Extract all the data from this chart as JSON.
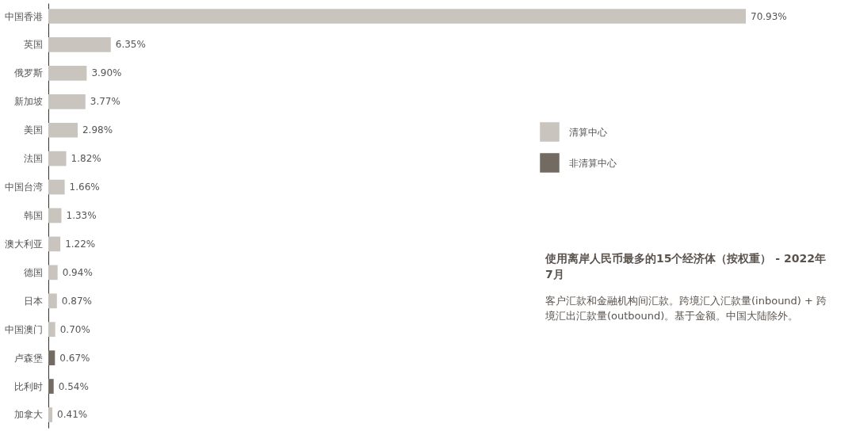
{
  "chart_data": {
    "type": "bar",
    "orientation": "horizontal",
    "title": "使用离岸人民币最多的15个经济体（按权重） - 2022年7月",
    "subtitle": "客户汇款和金融机构间汇款。跨境汇入汇款量(inbound) + 跨境汇出汇款量(outbound)。基于金额。中国大陆除外。",
    "categories": [
      "中国香港",
      "英国",
      "俄罗斯",
      "新加坡",
      "美国",
      "法国",
      "中国台湾",
      "韩国",
      "澳大利亚",
      "德国",
      "日本",
      "中国澳门",
      "卢森堡",
      "比利时",
      "加拿大"
    ],
    "series": [
      {
        "name": "清算中心",
        "color": "#c9c4bd",
        "values": [
          70.93,
          6.35,
          3.9,
          3.77,
          2.98,
          1.82,
          1.66,
          1.33,
          1.22,
          0.94,
          0.87,
          0.7,
          null,
          null,
          0.41
        ],
        "value_labels": [
          "70.93%",
          "6.35%",
          "3.90%",
          "3.77%",
          "2.98%",
          "1.82%",
          "1.66%",
          "1.33%",
          "1.22%",
          "0.94%",
          "0.87%",
          "0.70%",
          null,
          null,
          "0.41%"
        ]
      },
      {
        "name": "非清算中心",
        "color": "#736a62",
        "values": [
          null,
          null,
          null,
          null,
          null,
          null,
          null,
          null,
          null,
          null,
          null,
          null,
          0.67,
          0.54,
          null
        ],
        "value_labels": [
          null,
          null,
          null,
          null,
          null,
          null,
          null,
          null,
          null,
          null,
          null,
          null,
          "0.67%",
          "0.54%",
          null
        ]
      }
    ],
    "legend": "right",
    "grid": false
  }
}
